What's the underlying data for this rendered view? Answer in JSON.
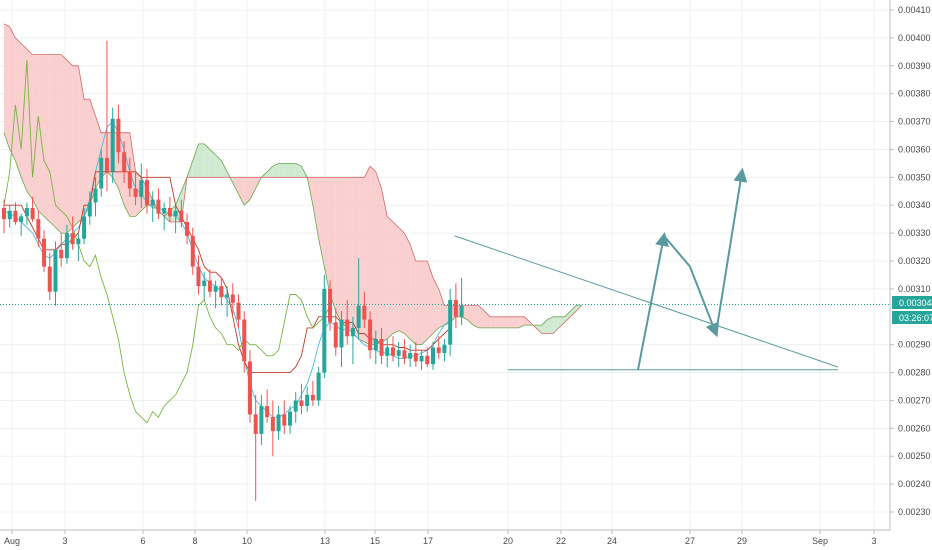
{
  "chart_data": {
    "type": "candlestick",
    "grid": true,
    "y_axis": {
      "position": "right",
      "range": [
        0.00229,
        0.00411
      ],
      "ticks": [
        "0.00410",
        "0.00400",
        "0.00390",
        "0.00380",
        "0.00370",
        "0.00360",
        "0.00350",
        "0.00340",
        "0.00330",
        "0.00320",
        "0.00310",
        "0.00290",
        "0.00280",
        "0.00270",
        "0.00260",
        "0.00250",
        "0.00240",
        "0.00230"
      ]
    },
    "x_axis": {
      "ticks": [
        "Aug",
        "3",
        "6",
        "8",
        "10",
        "13",
        "15",
        "17",
        "20",
        "22",
        "24",
        "27",
        "29",
        "Sep",
        "3"
      ]
    },
    "price_line": {
      "value": 0.003044,
      "label": "0.003044",
      "countdown": "03:26:07",
      "color": "#26a69a"
    },
    "colors": {
      "up": "#26a69a",
      "down": "#ef5350",
      "cloud_bull": "#c8e6c9",
      "cloud_bear": "#f8c7c7",
      "tenkan": "#4fb8d8",
      "kijun": "#c0392b",
      "chikou": "#7cb342",
      "drawing": "#5a9a9e"
    },
    "candles_ohlc": [
      [
        0.00339,
        0.00342,
        0.0033,
        0.00335
      ],
      [
        0.00335,
        0.0034,
        0.00332,
        0.00338
      ],
      [
        0.00338,
        0.00341,
        0.00333,
        0.00334
      ],
      [
        0.00334,
        0.00337,
        0.00329,
        0.00336
      ],
      [
        0.00336,
        0.00341,
        0.00333,
        0.00339
      ],
      [
        0.00339,
        0.00343,
        0.00334,
        0.00335
      ],
      [
        0.00335,
        0.00338,
        0.00325,
        0.00328
      ],
      [
        0.00328,
        0.00331,
        0.00316,
        0.00318
      ],
      [
        0.00318,
        0.00323,
        0.00306,
        0.00309
      ],
      [
        0.00309,
        0.00327,
        0.00304,
        0.00324
      ],
      [
        0.00324,
        0.0033,
        0.00318,
        0.00321
      ],
      [
        0.00321,
        0.00333,
        0.00319,
        0.0033
      ],
      [
        0.0033,
        0.00336,
        0.00324,
        0.00326
      ],
      [
        0.00326,
        0.0033,
        0.0032,
        0.00328
      ],
      [
        0.00328,
        0.00339,
        0.00326,
        0.00336
      ],
      [
        0.00336,
        0.00345,
        0.00333,
        0.00341
      ],
      [
        0.00341,
        0.0035,
        0.00336,
        0.00346
      ],
      [
        0.00346,
        0.0036,
        0.00343,
        0.00357
      ],
      [
        0.00357,
        0.00399,
        0.00345,
        0.00352
      ],
      [
        0.00352,
        0.00375,
        0.00348,
        0.00371
      ],
      [
        0.00371,
        0.00376,
        0.00355,
        0.00359
      ],
      [
        0.00359,
        0.00363,
        0.00348,
        0.00352
      ],
      [
        0.00352,
        0.00357,
        0.00343,
        0.00346
      ],
      [
        0.00346,
        0.00352,
        0.0034,
        0.00343
      ],
      [
        0.00343,
        0.00355,
        0.00339,
        0.00349
      ],
      [
        0.00349,
        0.00353,
        0.00337,
        0.0034
      ],
      [
        0.0034,
        0.00345,
        0.00334,
        0.00342
      ],
      [
        0.00342,
        0.00346,
        0.00335,
        0.00337
      ],
      [
        0.00337,
        0.00341,
        0.00331,
        0.00339
      ],
      [
        0.00339,
        0.00343,
        0.00334,
        0.00336
      ],
      [
        0.00336,
        0.0034,
        0.0033,
        0.00338
      ],
      [
        0.00338,
        0.00342,
        0.00332,
        0.00334
      ],
      [
        0.00334,
        0.00337,
        0.00326,
        0.00329
      ],
      [
        0.00329,
        0.00332,
        0.00315,
        0.00318
      ],
      [
        0.00318,
        0.00322,
        0.00308,
        0.00311
      ],
      [
        0.00311,
        0.00316,
        0.00306,
        0.00313
      ],
      [
        0.00313,
        0.00317,
        0.00307,
        0.00309
      ],
      [
        0.00309,
        0.00313,
        0.00303,
        0.00311
      ],
      [
        0.00311,
        0.00314,
        0.00304,
        0.00307
      ],
      [
        0.00307,
        0.00311,
        0.003,
        0.00308
      ],
      [
        0.00308,
        0.00312,
        0.00301,
        0.00305
      ],
      [
        0.00305,
        0.00308,
        0.00296,
        0.00299
      ],
      [
        0.00299,
        0.00302,
        0.0028,
        0.00284
      ],
      [
        0.00284,
        0.00288,
        0.00262,
        0.00265
      ],
      [
        0.00265,
        0.00272,
        0.00234,
        0.00258
      ],
      [
        0.00258,
        0.00272,
        0.00254,
        0.00268
      ],
      [
        0.00268,
        0.00274,
        0.00262,
        0.00264
      ],
      [
        0.00264,
        0.0027,
        0.0025,
        0.00259
      ],
      [
        0.00259,
        0.00268,
        0.00256,
        0.00265
      ],
      [
        0.00265,
        0.0027,
        0.00258,
        0.00261
      ],
      [
        0.00261,
        0.00268,
        0.00258,
        0.00266
      ],
      [
        0.00266,
        0.00273,
        0.00262,
        0.0027
      ],
      [
        0.0027,
        0.00276,
        0.00265,
        0.00268
      ],
      [
        0.00268,
        0.00275,
        0.00266,
        0.00272
      ],
      [
        0.00272,
        0.00277,
        0.00268,
        0.0027
      ],
      [
        0.0027,
        0.00282,
        0.00268,
        0.0028
      ],
      [
        0.0028,
        0.00315,
        0.00278,
        0.0031
      ],
      [
        0.0031,
        0.00313,
        0.00295,
        0.00298
      ],
      [
        0.00298,
        0.00303,
        0.00286,
        0.00289
      ],
      [
        0.00289,
        0.00302,
        0.00282,
        0.00299
      ],
      [
        0.00299,
        0.00306,
        0.0029,
        0.00293
      ],
      [
        0.00293,
        0.003,
        0.00283,
        0.00296
      ],
      [
        0.00296,
        0.00321,
        0.00292,
        0.00304
      ],
      [
        0.00304,
        0.00309,
        0.00296,
        0.00299
      ],
      [
        0.00299,
        0.00302,
        0.00285,
        0.00288
      ],
      [
        0.00288,
        0.00295,
        0.00283,
        0.00292
      ],
      [
        0.00292,
        0.00296,
        0.00283,
        0.00286
      ],
      [
        0.00286,
        0.00292,
        0.00282,
        0.00289
      ],
      [
        0.00289,
        0.00293,
        0.00284,
        0.00286
      ],
      [
        0.00286,
        0.00291,
        0.00282,
        0.00288
      ],
      [
        0.00288,
        0.00292,
        0.00283,
        0.00285
      ],
      [
        0.00285,
        0.0029,
        0.00282,
        0.00287
      ],
      [
        0.00287,
        0.00291,
        0.00282,
        0.00284
      ],
      [
        0.00284,
        0.00288,
        0.00281,
        0.00286
      ],
      [
        0.00286,
        0.00289,
        0.00282,
        0.00283
      ],
      [
        0.00283,
        0.00291,
        0.00281,
        0.00289
      ],
      [
        0.00289,
        0.00293,
        0.00285,
        0.00287
      ],
      [
        0.00287,
        0.00292,
        0.00284,
        0.0029
      ],
      [
        0.0029,
        0.0031,
        0.00286,
        0.00306
      ],
      [
        0.00306,
        0.00312,
        0.00296,
        0.003
      ],
      [
        0.003,
        0.00314,
        0.00297,
        0.00304
      ]
    ],
    "tenkan_sen": [
      0.00338,
      0.00337,
      0.00336,
      0.00334,
      0.00332,
      0.0033,
      0.00326,
      0.00322,
      0.00321,
      0.00323,
      0.00326,
      0.00328,
      0.0033,
      0.00332,
      0.00336,
      0.00342,
      0.00352,
      0.0036,
      0.00368,
      0.0037,
      0.00366,
      0.0036,
      0.00352,
      0.00346,
      0.00344,
      0.00341,
      0.00339,
      0.00339,
      0.00338,
      0.00337,
      0.00336,
      0.00334,
      0.0033,
      0.00324,
      0.00318,
      0.00314,
      0.00312,
      0.00311,
      0.00309,
      0.00306,
      0.00303,
      0.00296,
      0.00285,
      0.00276,
      0.0027,
      0.00268,
      0.00266,
      0.00264,
      0.00264,
      0.00265,
      0.00267,
      0.00268,
      0.00272,
      0.00276,
      0.00282,
      0.0029,
      0.00296,
      0.00298,
      0.00297,
      0.00295,
      0.00296,
      0.00294,
      0.00292,
      0.0029,
      0.00289,
      0.00288,
      0.00287,
      0.00287,
      0.00286,
      0.00285,
      0.00285,
      0.00286,
      0.00286,
      0.00287,
      0.00288,
      0.0029,
      0.00294,
      0.00297,
      0.00299
    ],
    "kijun_sen": [
      0.0034,
      0.0034,
      0.0034,
      0.0034,
      0.00336,
      0.00332,
      0.00328,
      0.00324,
      0.00324,
      0.00324,
      0.00326,
      0.00326,
      0.00328,
      0.0033,
      0.0034,
      0.0034,
      0.00352,
      0.00352,
      0.00352,
      0.00352,
      0.00352,
      0.00352,
      0.00352,
      0.00352,
      0.0035,
      0.0035,
      0.0035,
      0.0035,
      0.0035,
      0.0035,
      0.0034,
      0.00336,
      0.00332,
      0.00328,
      0.00324,
      0.00318,
      0.00316,
      0.00316,
      0.00314,
      0.0031,
      0.003,
      0.0029,
      0.00284,
      0.0028,
      0.0028,
      0.0028,
      0.0028,
      0.0028,
      0.0028,
      0.0028,
      0.0028,
      0.00282,
      0.00286,
      0.00296,
      0.00296,
      0.003,
      0.003,
      0.003,
      0.003,
      0.00298,
      0.00298,
      0.00298,
      0.00294,
      0.00294,
      0.00292,
      0.00292,
      0.0029,
      0.0029,
      0.0029,
      0.00289,
      0.00289,
      0.00288,
      0.00288,
      0.00288,
      0.00288,
      0.0029,
      0.00292,
      0.00294,
      0.00296
    ],
    "chikou_span": [
      0.0034,
      0.00352,
      0.00376,
      0.0036,
      0.00392,
      0.0035,
      0.00372,
      0.00356,
      0.00352,
      0.0034,
      0.00338,
      0.00336,
      0.00332,
      0.00326,
      0.0032,
      0.00318,
      0.00322,
      0.00314,
      0.00308,
      0.003,
      0.00292,
      0.0028,
      0.00272,
      0.00266,
      0.00264,
      0.00262,
      0.00266,
      0.00264,
      0.00268,
      0.0027,
      0.00272,
      0.00276,
      0.0028,
      0.0029,
      0.00304,
      0.00306,
      0.003,
      0.00296,
      0.00294,
      0.0029,
      0.0029,
      0.00288,
      0.00292,
      0.0029,
      0.0029,
      0.00288,
      0.00286,
      0.00286,
      0.00288,
      0.00298,
      0.00308,
      0.00308,
      0.00306,
      0.003,
      0.00296,
      0.00298,
      0.003,
      0.00304
    ],
    "senkou_a": [
      0.00366,
      0.0036,
      0.00356,
      0.0035,
      0.00345,
      0.00342,
      0.00338,
      0.00336,
      0.00334,
      0.00332,
      0.0033,
      0.0033,
      0.00332,
      0.00334,
      0.00336,
      0.0034,
      0.00346,
      0.0035,
      0.00352,
      0.0035,
      0.00346,
      0.0034,
      0.00336,
      0.00336,
      0.00338,
      0.0034,
      0.0034,
      0.00338,
      0.00336,
      0.00338,
      0.0034,
      0.00345,
      0.0035,
      0.00356,
      0.00362,
      0.00362,
      0.0036,
      0.00358,
      0.00356,
      0.00352,
      0.00348,
      0.00344,
      0.0034,
      0.00342,
      0.00346,
      0.0035,
      0.00352,
      0.00354,
      0.00355,
      0.00355,
      0.00355,
      0.00355,
      0.00354,
      0.0035,
      0.0034,
      0.00328,
      0.00318,
      0.00308,
      0.00302,
      0.00298,
      0.00296,
      0.00294,
      0.00292,
      0.00291,
      0.0029,
      0.0029,
      0.00291,
      0.00292,
      0.00294,
      0.00295,
      0.00294,
      0.00292,
      0.0029,
      0.0029,
      0.00292,
      0.00294,
      0.00296,
      0.00297,
      0.00298,
      0.003,
      0.003,
      0.00299,
      0.00297,
      0.00296,
      0.00296,
      0.00296,
      0.00296,
      0.00296,
      0.00296,
      0.00296,
      0.00296,
      0.00297,
      0.00297,
      0.00297,
      0.00297,
      0.00299,
      0.003,
      0.003,
      0.003,
      0.00302,
      0.00304,
      0.00304
    ],
    "senkou_b": [
      0.00405,
      0.00404,
      0.004,
      0.00398,
      0.00396,
      0.00394,
      0.00394,
      0.00394,
      0.00394,
      0.00394,
      0.00394,
      0.00392,
      0.0039,
      0.0039,
      0.00378,
      0.00378,
      0.00372,
      0.00366,
      0.00366,
      0.00366,
      0.00366,
      0.00366,
      0.00366,
      0.00352,
      0.0035,
      0.00346,
      0.00342,
      0.00338,
      0.00336,
      0.00334,
      0.00334,
      0.00334,
      0.0035,
      0.0035,
      0.0035,
      0.0035,
      0.0035,
      0.0035,
      0.0035,
      0.0035,
      0.0035,
      0.0035,
      0.0035,
      0.0035,
      0.0035,
      0.0035,
      0.0035,
      0.0035,
      0.0035,
      0.0035,
      0.0035,
      0.0035,
      0.0035,
      0.0035,
      0.0035,
      0.0035,
      0.0035,
      0.0035,
      0.0035,
      0.0035,
      0.0035,
      0.0035,
      0.0035,
      0.0035,
      0.00354,
      0.00352,
      0.00346,
      0.00336,
      0.00334,
      0.00332,
      0.0033,
      0.00326,
      0.0032,
      0.0032,
      0.0032,
      0.00314,
      0.0031,
      0.00304,
      0.00304,
      0.00304,
      0.00304,
      0.00304,
      0.00304,
      0.00304,
      0.00302,
      0.003,
      0.003,
      0.003,
      0.003,
      0.003,
      0.003,
      0.003,
      0.00298,
      0.00296,
      0.00294,
      0.00294,
      0.00294,
      0.00296,
      0.00298,
      0.003,
      0.00302,
      0.00304
    ],
    "drawings": {
      "triangle_upper": [
        [
          18,
          0.00329
        ],
        [
          33,
          0.00282
        ]
      ],
      "triangle_lower": [
        [
          20,
          0.00281
        ],
        [
          33,
          0.00281
        ]
      ],
      "projection_path": [
        [
          25,
          0.00281
        ],
        [
          26,
          0.00329
        ],
        [
          27,
          0.00318
        ],
        [
          28,
          0.00294
        ],
        [
          29,
          0.00352
        ]
      ]
    }
  }
}
